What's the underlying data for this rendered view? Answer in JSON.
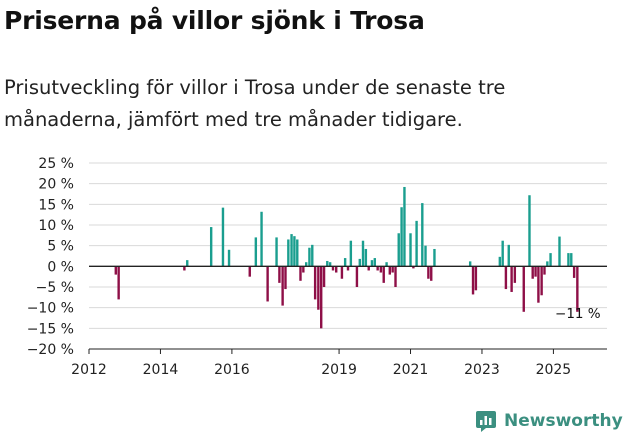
{
  "header": {
    "title": "Priserna på villor sjönk i Trosa",
    "subtitle": "Prisutveckling för villor i Trosa under de senaste tre månaderna, jämfört med tre månader tidigare."
  },
  "brand": {
    "name": "Newsworthy",
    "logo_icon": "newsworthy-bar-chart-icon"
  },
  "colors": {
    "positive": "#1a9e8f",
    "negative": "#8e0f47",
    "grid": "#d9d9d9",
    "axis": "#222222",
    "brand": "#3b8f80"
  },
  "chart_data": {
    "type": "bar",
    "title": "Priserna på villor sjönk i Trosa",
    "xlabel": "",
    "ylabel": "",
    "ylim": [
      -20,
      25
    ],
    "ytick_values": [
      -20,
      -15,
      -10,
      -5,
      0,
      5,
      10,
      15,
      20,
      25
    ],
    "ytick_labels": [
      "−20 %",
      "−15 %",
      "−10 %",
      "−5 %",
      "0 %",
      "5 %",
      "10 %",
      "15 %",
      "20 %",
      "25 %"
    ],
    "xlim": [
      2012,
      2026.5
    ],
    "xtick_values": [
      2012,
      2014,
      2016,
      2019,
      2021,
      2023,
      2025
    ],
    "xtick_labels": [
      "2012",
      "2014",
      "2016",
      "2019",
      "2021",
      "2023",
      "2025"
    ],
    "grid": true,
    "annotation": {
      "text": "−11 %",
      "x": 2025.6,
      "y": -11
    },
    "series": [
      {
        "name": "Prisutveckling",
        "x": [
          2012.75,
          2012.83,
          2014.67,
          2014.75,
          2015.42,
          2015.75,
          2015.92,
          2016.5,
          2016.67,
          2016.83,
          2017.0,
          2017.25,
          2017.33,
          2017.42,
          2017.5,
          2017.58,
          2017.67,
          2017.75,
          2017.83,
          2017.92,
          2018.0,
          2018.08,
          2018.17,
          2018.25,
          2018.33,
          2018.42,
          2018.5,
          2018.58,
          2018.67,
          2018.75,
          2018.83,
          2018.92,
          2019.08,
          2019.17,
          2019.25,
          2019.33,
          2019.5,
          2019.58,
          2019.67,
          2019.75,
          2019.83,
          2019.92,
          2020.0,
          2020.08,
          2020.17,
          2020.25,
          2020.33,
          2020.42,
          2020.5,
          2020.58,
          2020.67,
          2020.75,
          2020.83,
          2021.0,
          2021.08,
          2021.17,
          2021.33,
          2021.42,
          2021.5,
          2021.58,
          2021.67,
          2022.67,
          2022.75,
          2022.83,
          2023.5,
          2023.58,
          2023.67,
          2023.75,
          2023.83,
          2023.92,
          2024.17,
          2024.33,
          2024.42,
          2024.5,
          2024.58,
          2024.67,
          2024.75,
          2024.83,
          2024.92,
          2025.17,
          2025.42,
          2025.5,
          2025.58,
          2025.67
        ],
        "values": [
          -2,
          -8,
          -1,
          1.5,
          9.5,
          14.2,
          4,
          -2.5,
          7,
          13.2,
          -8.5,
          7,
          -4,
          -9.5,
          -5.5,
          6.5,
          7.8,
          7.3,
          6.5,
          -3.5,
          -1.5,
          1,
          4.5,
          5.2,
          -8,
          -10.5,
          -15,
          -5,
          1.3,
          1,
          -1,
          -1.5,
          -3,
          2,
          -1,
          6.2,
          -5,
          1.8,
          6.2,
          4.2,
          -1,
          1.5,
          2,
          -1,
          -1.5,
          -4,
          1,
          -2,
          -1.5,
          -5,
          8,
          14.3,
          19.2,
          8,
          -0.5,
          11,
          15.3,
          5,
          -3,
          -3.5,
          4.2,
          1.2,
          -6.8,
          -5.8,
          2.3,
          6.2,
          -5.5,
          5.2,
          -6.2,
          -4,
          -11,
          17.2,
          -3,
          -2.5,
          -8.8,
          -7,
          -2,
          1.2,
          3.2,
          7.2,
          3.2,
          3.2,
          -2.8,
          -11
        ]
      }
    ]
  }
}
